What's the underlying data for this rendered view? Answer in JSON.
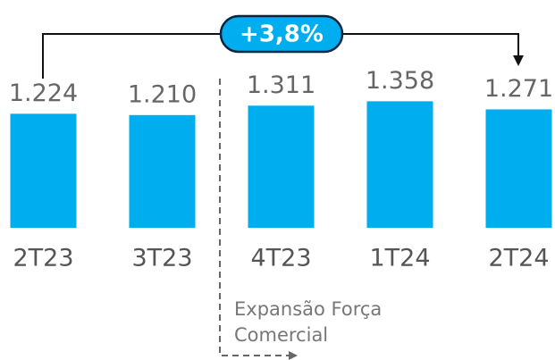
{
  "chart_data": {
    "type": "bar",
    "categories": [
      "2T23",
      "3T23",
      "4T23",
      "1T24",
      "2T24"
    ],
    "values": [
      1224,
      1210,
      1311,
      1358,
      1271
    ],
    "value_labels": [
      "1.224",
      "1.210",
      "1.311",
      "1.358",
      "1.271"
    ],
    "color": "#00aeef",
    "ylim": [
      0,
      1400
    ],
    "growth_label": "+3,8%",
    "annotation": "Expansão Força Comercial"
  }
}
